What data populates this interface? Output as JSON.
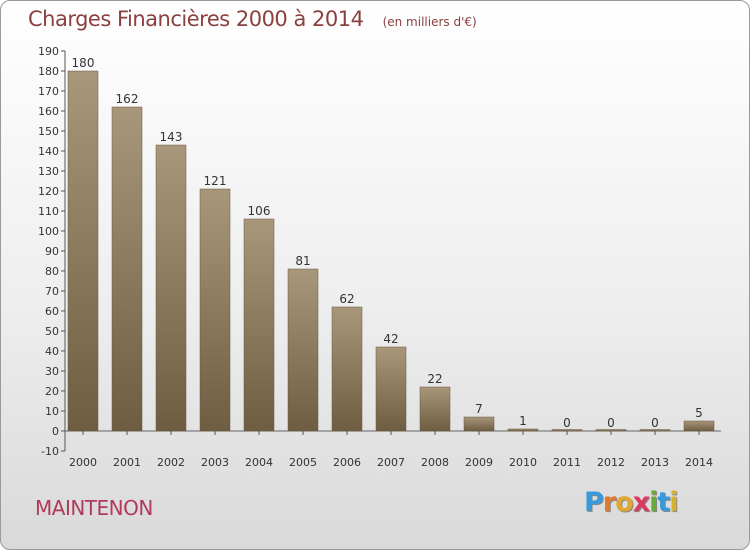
{
  "chart_data": {
    "type": "bar",
    "title": "Charges Financières 2000 à 2014",
    "subtitle": "(en milliers d'€)",
    "categories": [
      "2000",
      "2001",
      "2002",
      "2003",
      "2004",
      "2005",
      "2006",
      "2007",
      "2008",
      "2009",
      "2010",
      "2011",
      "2012",
      "2013",
      "2014"
    ],
    "values": [
      180,
      162,
      143,
      121,
      106,
      81,
      62,
      42,
      22,
      7,
      1,
      0,
      0,
      0,
      5
    ],
    "data_labels": [
      "180",
      "162",
      "143",
      "121",
      "106",
      "81",
      "62",
      "42",
      "22",
      "7",
      "1",
      "0",
      "0",
      "0",
      "5"
    ],
    "ylim": [
      -10,
      190
    ],
    "y_ticks": [
      -10,
      0,
      10,
      20,
      30,
      40,
      50,
      60,
      70,
      80,
      90,
      100,
      110,
      120,
      130,
      140,
      150,
      160,
      170,
      180,
      190
    ],
    "grid": false,
    "legend": "none",
    "bar_color": "#7d6a4e",
    "bar_highlight": "#a8977a"
  },
  "footer": {
    "city": "MAINTENON",
    "logo_letters": [
      "P",
      "r",
      "o",
      "x",
      "i",
      "t",
      "i"
    ],
    "logo_colors": [
      "#3a9ad9",
      "#e07b2e",
      "#e0a82e",
      "#d93a5c",
      "#6aa83a",
      "#3a9ad9",
      "#d9b02e"
    ]
  }
}
